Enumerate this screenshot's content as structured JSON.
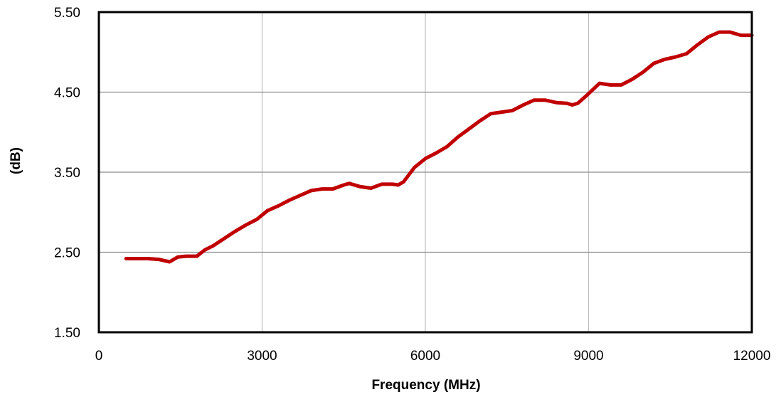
{
  "chart_data": {
    "type": "line",
    "title": "",
    "xlabel": "Frequency (MHz)",
    "ylabel": "(dB)",
    "xlim": [
      0,
      12000
    ],
    "ylim": [
      1.5,
      5.5
    ],
    "x_ticks": [
      0,
      3000,
      6000,
      9000,
      12000
    ],
    "x_tick_labels": [
      "0",
      "3000",
      "6000",
      "9000",
      "12000"
    ],
    "y_ticks": [
      1.5,
      2.5,
      3.5,
      4.5,
      5.5
    ],
    "y_tick_labels": [
      "1.50",
      "2.50",
      "3.50",
      "4.50",
      "5.50"
    ],
    "grid": true,
    "legend": "none",
    "colors": {
      "line": "#c00000",
      "grid": "#bfbfbf",
      "axes": "#000000"
    },
    "series": [
      {
        "x": [
          500,
          700,
          900,
          1100,
          1300,
          1450,
          1600,
          1800,
          1950,
          2100,
          2300,
          2500,
          2700,
          2900,
          3100,
          3300,
          3500,
          3700,
          3900,
          4100,
          4300,
          4500,
          4600,
          4800,
          5000,
          5200,
          5400,
          5500,
          5600,
          5800,
          6000,
          6200,
          6400,
          6600,
          6800,
          7000,
          7200,
          7400,
          7600,
          7800,
          8000,
          8200,
          8400,
          8600,
          8700,
          8800,
          9000,
          9200,
          9400,
          9600,
          9800,
          10000,
          10200,
          10400,
          10600,
          10800,
          11000,
          11200,
          11400,
          11600,
          11800,
          12000
        ],
        "values": [
          2.42,
          2.42,
          2.42,
          2.41,
          2.38,
          2.44,
          2.45,
          2.45,
          2.53,
          2.58,
          2.67,
          2.76,
          2.84,
          2.91,
          3.02,
          3.08,
          3.15,
          3.21,
          3.27,
          3.29,
          3.29,
          3.34,
          3.36,
          3.32,
          3.3,
          3.35,
          3.35,
          3.34,
          3.38,
          3.56,
          3.67,
          3.74,
          3.82,
          3.94,
          4.04,
          4.14,
          4.23,
          4.25,
          4.27,
          4.34,
          4.4,
          4.4,
          4.37,
          4.36,
          4.34,
          4.36,
          4.48,
          4.61,
          4.59,
          4.59,
          4.66,
          4.75,
          4.86,
          4.91,
          4.94,
          4.98,
          5.09,
          5.19,
          5.25,
          5.25,
          5.21,
          5.21
        ]
      }
    ]
  }
}
